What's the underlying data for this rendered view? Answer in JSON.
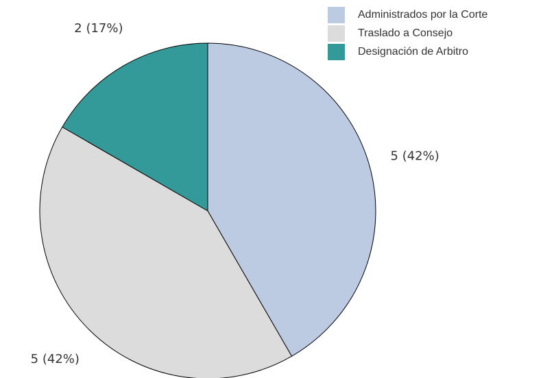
{
  "chart_data": {
    "type": "pie",
    "categories": [
      "Administrados por la Corte",
      "Traslado a Consejo",
      "Designación de Arbitro"
    ],
    "values": [
      5,
      5,
      2
    ],
    "value_labels": [
      "5  (42%)",
      "5  (42%)",
      "2  (17%)"
    ],
    "colors": [
      "#bccbe2",
      "#dcdcdc",
      "#339999"
    ],
    "legend": "top-right"
  }
}
